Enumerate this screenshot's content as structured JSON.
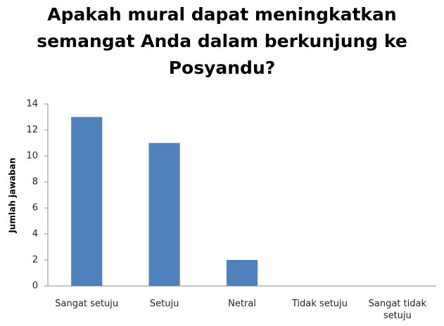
{
  "chart_data": {
    "type": "bar",
    "title": "Apakah mural dapat meningkatkan semangat Anda dalam berkunjung ke Posyandu?",
    "y_label": "Jumlah jawaban",
    "categories": [
      "Sangat setuju",
      "Setuju",
      "Netral",
      "Tidak setuju",
      "Sangat tidak setuju"
    ],
    "values": [
      13,
      11,
      2,
      0,
      0
    ],
    "color": "#4f81bd",
    "ylim": [
      0,
      14
    ],
    "yticks": [
      0,
      2,
      4,
      6,
      8,
      10,
      12,
      14
    ],
    "grid": false
  }
}
